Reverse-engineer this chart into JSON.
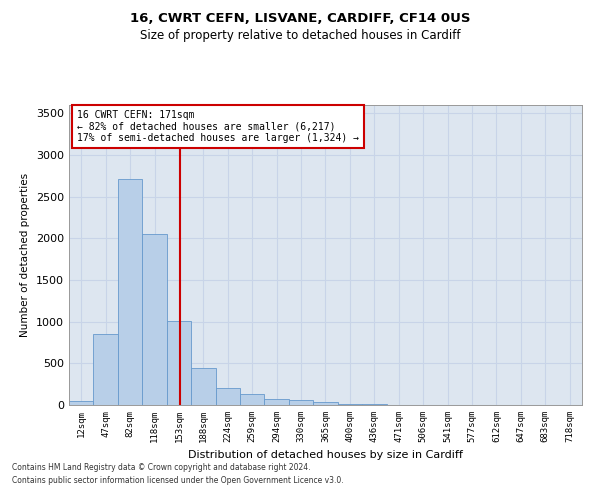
{
  "title1": "16, CWRT CEFN, LISVANE, CARDIFF, CF14 0US",
  "title2": "Size of property relative to detached houses in Cardiff",
  "xlabel": "Distribution of detached houses by size in Cardiff",
  "ylabel": "Number of detached properties",
  "bin_labels": [
    "12sqm",
    "47sqm",
    "82sqm",
    "118sqm",
    "153sqm",
    "188sqm",
    "224sqm",
    "259sqm",
    "294sqm",
    "330sqm",
    "365sqm",
    "400sqm",
    "436sqm",
    "471sqm",
    "506sqm",
    "541sqm",
    "577sqm",
    "612sqm",
    "647sqm",
    "683sqm",
    "718sqm"
  ],
  "bar_values": [
    52,
    848,
    2710,
    2050,
    1005,
    450,
    205,
    135,
    72,
    57,
    36,
    16,
    7,
    3,
    2,
    1,
    1,
    0,
    0,
    0,
    0
  ],
  "bar_color": "#b8cfe8",
  "bar_edgecolor": "#6699cc",
  "grid_color": "#c8d4e8",
  "background_color": "#dde6f0",
  "vline_color": "#cc0000",
  "annotation_text": "16 CWRT CEFN: 171sqm\n← 82% of detached houses are smaller (6,217)\n17% of semi-detached houses are larger (1,324) →",
  "annotation_box_color": "#ffffff",
  "annotation_box_edgecolor": "#cc0000",
  "ylim": [
    0,
    3600
  ],
  "yticks": [
    0,
    500,
    1000,
    1500,
    2000,
    2500,
    3000,
    3500
  ],
  "footnote1": "Contains HM Land Registry data © Crown copyright and database right 2024.",
  "footnote2": "Contains public sector information licensed under the Open Government Licence v3.0."
}
